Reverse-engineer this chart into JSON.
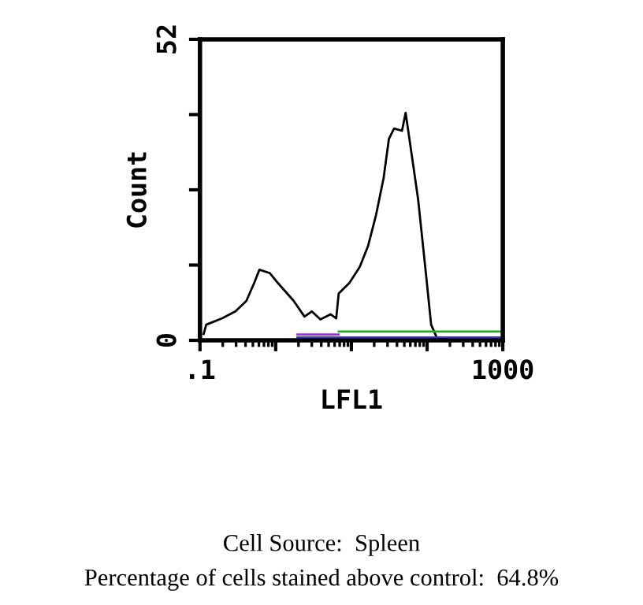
{
  "chart_data": {
    "type": "line",
    "xlabel": "LFL1",
    "ylabel": "Count",
    "log": "x",
    "grid": false,
    "series": [
      {
        "color": "#000000",
        "x": [
          0.112,
          0.121,
          0.197,
          0.294,
          0.41,
          0.52,
          0.61,
          0.84,
          1.07,
          1.73,
          2.4,
          3.0,
          3.9,
          5.3,
          6.3,
          6.8,
          9.4,
          12.9,
          16.6,
          21.2,
          26.6,
          31.3,
          36.6,
          46.6,
          52,
          59,
          76,
          96,
          113,
          134,
          184,
          900
        ],
        "values": [
          1.1,
          2.7,
          3.8,
          5.0,
          6.8,
          9.9,
          12.2,
          11.6,
          9.9,
          6.8,
          4.1,
          5.0,
          3.6,
          4.5,
          3.8,
          8.1,
          9.9,
          12.7,
          16.3,
          21.7,
          28.0,
          34.8,
          36.6,
          36.2,
          39.3,
          34.4,
          24.4,
          11.8,
          2.7,
          0.5,
          0,
          0
        ]
      },
      {
        "color": "#3333cc",
        "x": [
          1.94,
          1000
        ],
        "values": [
          0.5,
          0.5
        ]
      },
      {
        "color": "#9933cc",
        "x": [
          1.94,
          6.8
        ],
        "values": [
          1.0,
          1.0
        ]
      },
      {
        "color": "#22aa22",
        "x": [
          6.8,
          1000
        ],
        "values": [
          1.5,
          1.5
        ]
      }
    ],
    "xlim": [
      0.1,
      1000
    ],
    "xticks": [
      {
        "value": 0.1,
        "label": ".1"
      },
      {
        "value": 1,
        "label": null
      },
      {
        "value": 10,
        "label": null
      },
      {
        "value": 100,
        "label": null
      },
      1000
    ],
    "ylim": [
      0,
      52
    ],
    "yticks": [
      0,
      {
        "value": 13,
        "label": null
      },
      {
        "value": 26,
        "label": null
      },
      {
        "value": 39,
        "label": null
      },
      52
    ],
    "annotations": [
      "Cell Source:  Spleen",
      "Percentage of cells stained above control:  64.8%"
    ]
  }
}
